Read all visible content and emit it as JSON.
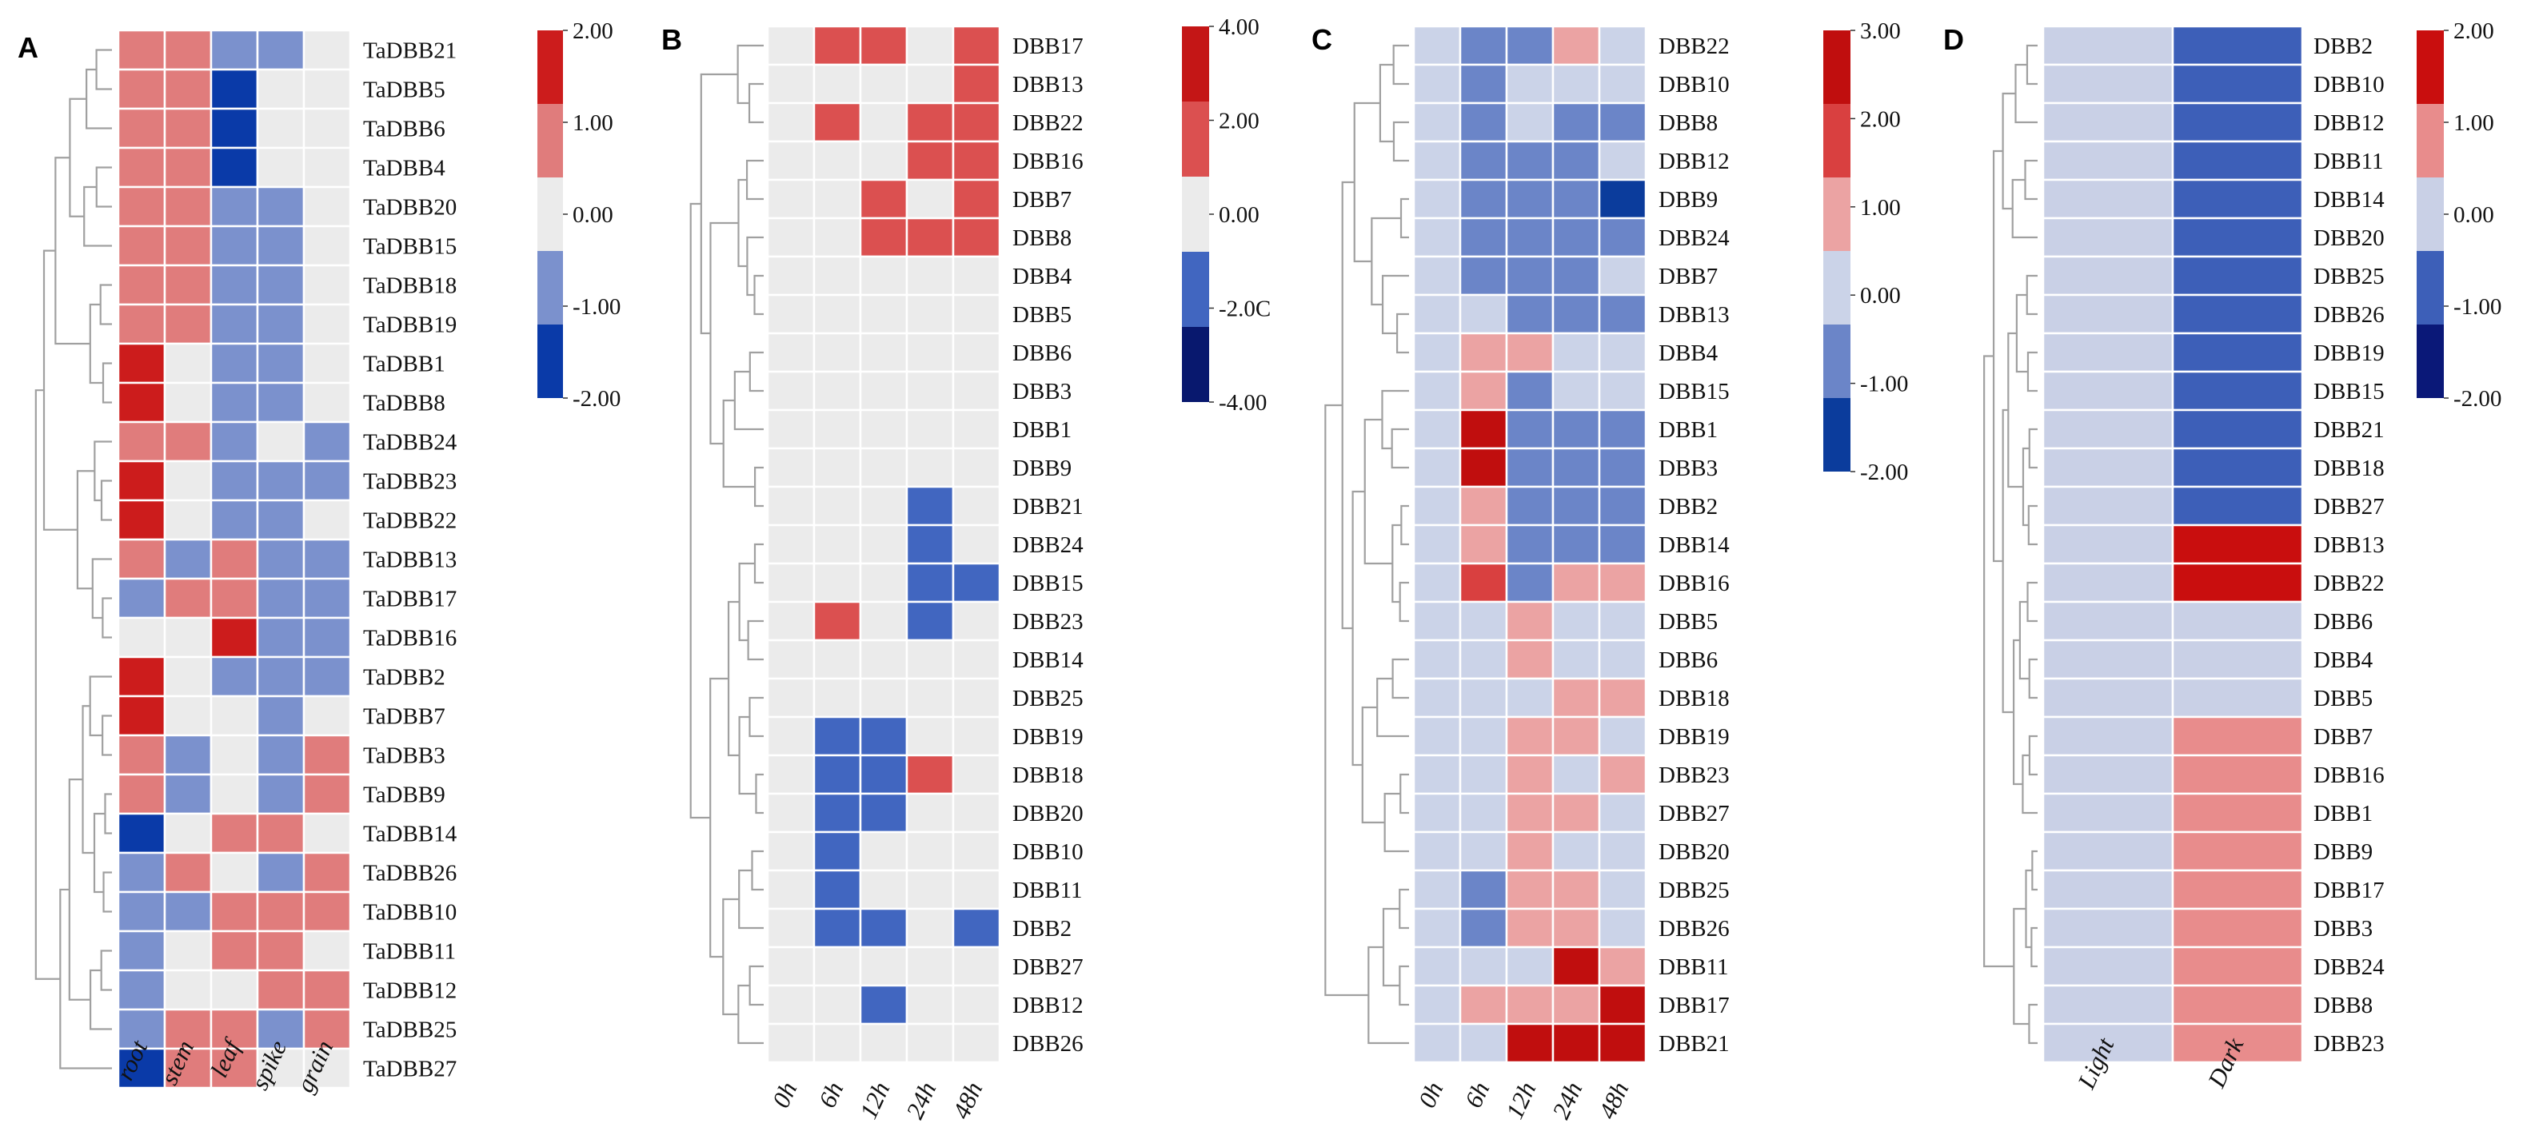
{
  "chart_data": [
    {
      "type": "heatmap",
      "panel": "A",
      "columns": [
        "root",
        "stem",
        "leaf",
        "spike",
        "grain"
      ],
      "rows": [
        "TaDBB21",
        "TaDBB5",
        "TaDBB6",
        "TaDBB4",
        "TaDBB20",
        "TaDBB15",
        "TaDBB18",
        "TaDBB19",
        "TaDBB1",
        "TaDBB8",
        "TaDBB24",
        "TaDBB23",
        "TaDBB22",
        "TaDBB13",
        "TaDBB17",
        "TaDBB16",
        "TaDBB2",
        "TaDBB7",
        "TaDBB3",
        "TaDBB9",
        "TaDBB14",
        "TaDBB26",
        "TaDBB10",
        "TaDBB11",
        "TaDBB12",
        "TaDBB25",
        "TaDBB27"
      ],
      "values": [
        [
          1,
          1,
          -1,
          -1,
          0
        ],
        [
          1,
          1,
          -2,
          0,
          0
        ],
        [
          1,
          1,
          -2,
          0,
          0
        ],
        [
          1,
          1,
          -2,
          0,
          0
        ],
        [
          1,
          1,
          -1,
          -1,
          0
        ],
        [
          1,
          1,
          -1,
          -1,
          0
        ],
        [
          1,
          1,
          -1,
          -1,
          0
        ],
        [
          1,
          1,
          -1,
          -1,
          0
        ],
        [
          2,
          0,
          -1,
          -1,
          0
        ],
        [
          2,
          0,
          -1,
          -1,
          0
        ],
        [
          1,
          1,
          -1,
          0,
          -1
        ],
        [
          2,
          0,
          -1,
          -1,
          -1
        ],
        [
          2,
          0,
          -1,
          -1,
          0
        ],
        [
          1,
          -1,
          1,
          -1,
          -1
        ],
        [
          -1,
          1,
          1,
          -1,
          -1
        ],
        [
          0,
          0,
          2,
          -1,
          -1
        ],
        [
          2,
          0,
          -1,
          -1,
          -1
        ],
        [
          2,
          0,
          0,
          -1,
          0
        ],
        [
          1,
          -1,
          0,
          -1,
          1
        ],
        [
          1,
          -1,
          0,
          -1,
          1
        ],
        [
          -2,
          0,
          1,
          1,
          0
        ],
        [
          -1,
          1,
          0,
          -1,
          1
        ],
        [
          -1,
          -1,
          1,
          1,
          1
        ],
        [
          -1,
          0,
          1,
          1,
          0
        ],
        [
          -1,
          0,
          0,
          1,
          1
        ],
        [
          -1,
          1,
          1,
          -1,
          1
        ],
        [
          -2,
          1,
          1,
          0,
          0
        ]
      ],
      "legend": {
        "ticks": [
          "2.00",
          "1.00",
          "0.00",
          "-1.00",
          "-2.00"
        ],
        "colors": [
          "#cc1c1c",
          "#e07c7c",
          "#ebebeb",
          "#7b91cd",
          "#0a3aa8"
        ]
      }
    },
    {
      "type": "heatmap",
      "panel": "B",
      "columns": [
        "0h",
        "6h",
        "12h",
        "24h",
        "48h"
      ],
      "rows": [
        "DBB17",
        "DBB13",
        "DBB22",
        "DBB16",
        "DBB7",
        "DBB8",
        "DBB4",
        "DBB5",
        "DBB6",
        "DBB3",
        "DBB1",
        "DBB9",
        "DBB21",
        "DBB24",
        "DBB15",
        "DBB23",
        "DBB14",
        "DBB25",
        "DBB19",
        "DBB18",
        "DBB20",
        "DBB10",
        "DBB11",
        "DBB2",
        "DBB27",
        "DBB12",
        "DBB26"
      ],
      "values": [
        [
          0,
          1,
          1,
          0,
          1
        ],
        [
          0,
          0,
          0,
          0,
          1
        ],
        [
          0,
          1,
          0,
          1,
          1
        ],
        [
          0,
          0,
          0,
          1,
          1
        ],
        [
          0,
          0,
          1,
          0,
          1
        ],
        [
          0,
          0,
          1,
          1,
          1
        ],
        [
          0,
          0,
          0,
          0,
          0
        ],
        [
          0,
          0,
          0,
          0,
          0
        ],
        [
          0,
          0,
          0,
          0,
          0
        ],
        [
          0,
          0,
          0,
          0,
          0
        ],
        [
          0,
          0,
          0,
          0,
          0
        ],
        [
          0,
          0,
          0,
          0,
          0
        ],
        [
          0,
          0,
          0,
          -1,
          0
        ],
        [
          0,
          0,
          0,
          -1,
          0
        ],
        [
          0,
          0,
          0,
          -1,
          -1
        ],
        [
          0,
          1,
          0,
          -1,
          0
        ],
        [
          0,
          0,
          0,
          0,
          0
        ],
        [
          0,
          0,
          0,
          0,
          0
        ],
        [
          0,
          -1,
          -1,
          0,
          0
        ],
        [
          0,
          -1,
          -1,
          1,
          0
        ],
        [
          0,
          -1,
          -1,
          0,
          0
        ],
        [
          0,
          -1,
          0,
          0,
          0
        ],
        [
          0,
          -1,
          0,
          0,
          0
        ],
        [
          0,
          -1,
          -1,
          0,
          -1
        ],
        [
          0,
          0,
          0,
          0,
          0
        ],
        [
          0,
          0,
          -1,
          0,
          0
        ],
        [
          0,
          0,
          0,
          0,
          0
        ]
      ],
      "legend": {
        "ticks": [
          "4.00",
          "2.00",
          "0.00",
          "-2.0C",
          "-4.00"
        ],
        "colors": [
          "#c41616",
          "#db5050",
          "#ebebeb",
          "#4166c0",
          "#08186e"
        ]
      }
    },
    {
      "type": "heatmap",
      "panel": "C",
      "columns": [
        "0h",
        "6h",
        "12h",
        "24h",
        "48h"
      ],
      "rows": [
        "DBB22",
        "DBB10",
        "DBB8",
        "DBB12",
        "DBB9",
        "DBB24",
        "DBB7",
        "DBB13",
        "DBB4",
        "DBB15",
        "DBB1",
        "DBB3",
        "DBB2",
        "DBB14",
        "DBB16",
        "DBB5",
        "DBB6",
        "DBB18",
        "DBB19",
        "DBB23",
        "DBB27",
        "DBB20",
        "DBB25",
        "DBB26",
        "DBB11",
        "DBB17",
        "DBB21"
      ],
      "values": [
        [
          0,
          -1,
          -1,
          1,
          0
        ],
        [
          0,
          -1,
          0,
          0,
          0
        ],
        [
          0,
          -1,
          0,
          -1,
          -1
        ],
        [
          0,
          -1,
          -1,
          -1,
          0
        ],
        [
          0,
          -1,
          -1,
          -1,
          -2
        ],
        [
          0,
          -1,
          -1,
          -1,
          -1
        ],
        [
          0,
          -1,
          -1,
          -1,
          0
        ],
        [
          0,
          0,
          -1,
          -1,
          -1
        ],
        [
          0,
          1,
          1,
          0,
          0
        ],
        [
          0,
          1,
          -1,
          0,
          0
        ],
        [
          0,
          3,
          -1,
          -1,
          -1
        ],
        [
          0,
          3,
          -1,
          -1,
          -1
        ],
        [
          0,
          1,
          -1,
          -1,
          -1
        ],
        [
          0,
          1,
          -1,
          -1,
          -1
        ],
        [
          0,
          2,
          -1,
          1,
          1
        ],
        [
          0,
          0,
          1,
          0,
          0
        ],
        [
          0,
          0,
          1,
          0,
          0
        ],
        [
          0,
          0,
          0,
          1,
          1
        ],
        [
          0,
          0,
          1,
          1,
          0
        ],
        [
          0,
          0,
          1,
          0,
          1
        ],
        [
          0,
          0,
          1,
          1,
          0
        ],
        [
          0,
          0,
          1,
          0,
          0
        ],
        [
          0,
          -1,
          1,
          1,
          0
        ],
        [
          0,
          -1,
          1,
          1,
          0
        ],
        [
          0,
          0,
          0,
          3,
          1
        ],
        [
          0,
          1,
          1,
          1,
          3
        ],
        [
          0,
          0,
          3,
          3,
          3
        ]
      ],
      "legend": {
        "ticks": [
          "3.00",
          "2.00",
          "1.00",
          "0.00",
          "-1.00",
          "-2.00"
        ],
        "colors": [
          "#c00e0e",
          "#d94040",
          "#eba3a3",
          "#cbd3e8",
          "#6b85c8",
          "#0b3c9c"
        ]
      }
    },
    {
      "type": "heatmap",
      "panel": "D",
      "columns": [
        "Light",
        "Dark"
      ],
      "rows": [
        "DBB2",
        "DBB10",
        "DBB12",
        "DBB11",
        "DBB14",
        "DBB20",
        "DBB25",
        "DBB26",
        "DBB19",
        "DBB15",
        "DBB21",
        "DBB18",
        "DBB27",
        "DBB13",
        "DBB22",
        "DBB6",
        "DBB4",
        "DBB5",
        "DBB7",
        "DBB16",
        "DBB1",
        "DBB9",
        "DBB17",
        "DBB3",
        "DBB24",
        "DBB8",
        "DBB23"
      ],
      "values": [
        [
          0,
          -1
        ],
        [
          0,
          -1
        ],
        [
          0,
          -1
        ],
        [
          0,
          -1
        ],
        [
          0,
          -1
        ],
        [
          0,
          -1
        ],
        [
          0,
          -1
        ],
        [
          0,
          -1
        ],
        [
          0,
          -1
        ],
        [
          0,
          -1
        ],
        [
          0,
          -1
        ],
        [
          0,
          -1
        ],
        [
          0,
          -1
        ],
        [
          0,
          2
        ],
        [
          0,
          2
        ],
        [
          0,
          0
        ],
        [
          0,
          0
        ],
        [
          0,
          0
        ],
        [
          0,
          1
        ],
        [
          0,
          1
        ],
        [
          0,
          1
        ],
        [
          0,
          1
        ],
        [
          0,
          1
        ],
        [
          0,
          1
        ],
        [
          0,
          1
        ],
        [
          0,
          1
        ],
        [
          0,
          1
        ]
      ],
      "legend": {
        "ticks": [
          "2.00",
          "1.00",
          "0.00",
          "-1.00",
          "-2.00"
        ],
        "colors": [
          "#c90e0e",
          "#e88c8c",
          "#c9d0e6",
          "#3d5fb8",
          "#0a1878"
        ]
      }
    }
  ]
}
